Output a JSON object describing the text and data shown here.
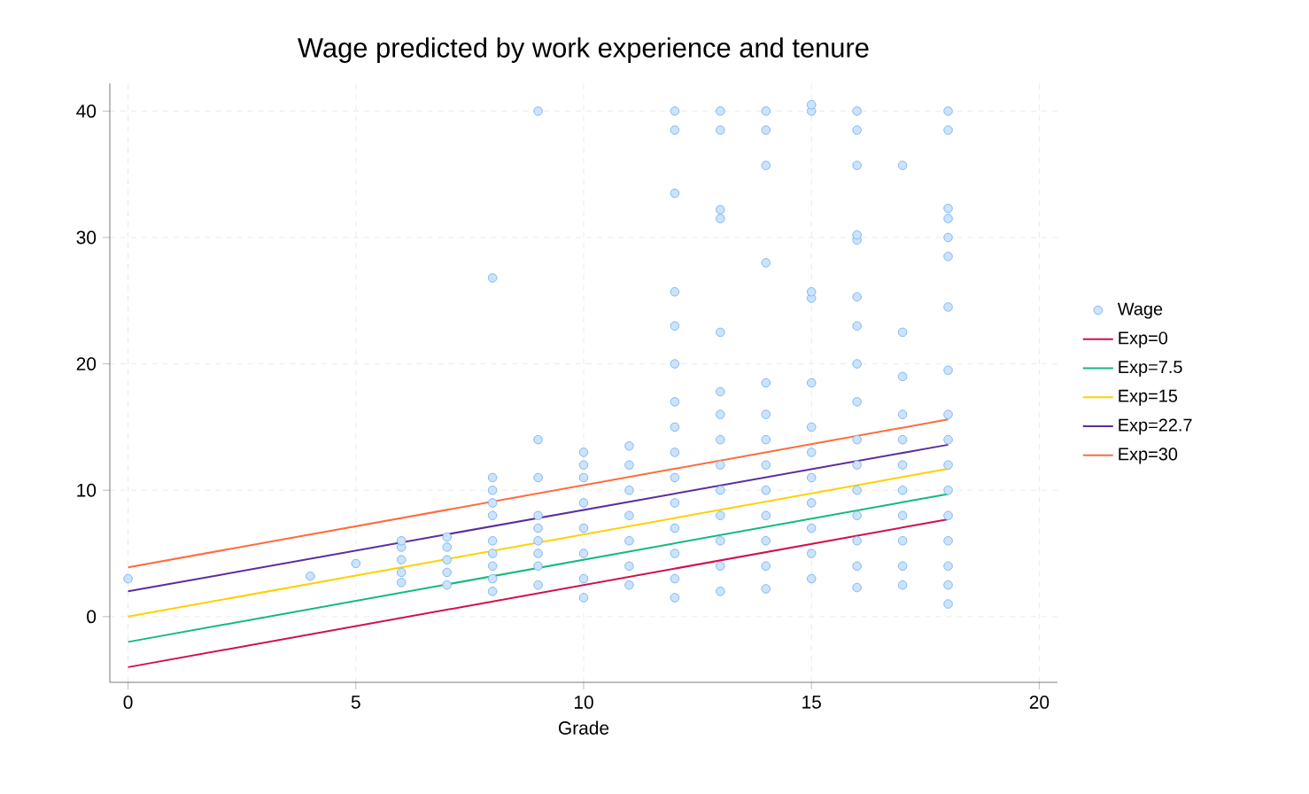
{
  "chart_data": {
    "type": "line",
    "title": "Wage predicted by work experience and tenure",
    "xlabel": "Grade",
    "xlim": [
      -0.4,
      20.4
    ],
    "ylim": [
      -5.2,
      42.2
    ],
    "xticks": [
      0,
      5,
      10,
      15,
      20
    ],
    "yticks": [
      0,
      10,
      20,
      30,
      40
    ],
    "grid": true,
    "legend": "right",
    "series": [
      {
        "name": "Wage",
        "type": "scatter",
        "marker": "circle",
        "color": "#7fb8f5",
        "x": [
          0,
          4,
          5,
          6,
          6,
          6,
          6,
          6,
          7,
          7,
          7,
          7,
          7,
          8,
          8,
          8,
          8,
          8,
          8,
          8,
          8,
          8,
          8,
          9,
          9,
          9,
          9,
          9,
          9,
          9,
          9,
          9,
          10,
          10,
          10,
          10,
          10,
          10,
          10,
          10,
          11,
          11,
          11,
          11,
          11,
          11,
          11,
          12,
          12,
          12,
          12,
          12,
          12,
          12,
          12,
          12,
          12,
          12,
          12,
          12,
          12,
          12,
          13,
          13,
          13,
          13,
          13,
          13,
          13,
          13,
          13,
          13,
          13,
          13,
          13,
          13,
          14,
          14,
          14,
          14,
          14,
          14,
          14,
          14,
          14,
          14,
          14,
          14,
          14,
          15,
          15,
          15,
          15,
          15,
          15,
          15,
          15,
          15,
          15,
          15,
          15,
          16,
          16,
          16,
          16,
          16,
          16,
          16,
          16,
          16,
          16,
          16,
          16,
          16,
          16,
          16,
          16,
          17,
          17,
          17,
          17,
          17,
          17,
          17,
          17,
          17,
          17,
          17,
          18,
          18,
          18,
          18,
          18,
          18,
          18,
          18,
          18,
          18,
          18,
          18,
          18,
          18,
          18,
          18,
          18
        ],
        "values": [
          3,
          3.2,
          4.2,
          2.7,
          3.5,
          4.5,
          5.5,
          6,
          2.5,
          3.5,
          4.5,
          5.5,
          6.3,
          2,
          3,
          4,
          5,
          6,
          8,
          9,
          10,
          11,
          26.8,
          2.5,
          4,
          5,
          6,
          7,
          8,
          11,
          14,
          40,
          1.5,
          3,
          5,
          7,
          9,
          11,
          12,
          13,
          2.5,
          4,
          6,
          8,
          10,
          12,
          13.5,
          1.5,
          3,
          5,
          7,
          9,
          11,
          13,
          15,
          17,
          20,
          23,
          25.7,
          33.5,
          38.5,
          40,
          2,
          4,
          6,
          8,
          10,
          12,
          14,
          16,
          17.8,
          22.5,
          31.5,
          32.2,
          38.5,
          40,
          2.2,
          4,
          6,
          8,
          10,
          12,
          14,
          16,
          18.5,
          28,
          35.7,
          38.5,
          40,
          3,
          5,
          7,
          9,
          11,
          13,
          15,
          18.5,
          25.2,
          25.7,
          40,
          40.5,
          2.3,
          4,
          6,
          8,
          10,
          12,
          14,
          17,
          20,
          23,
          25.3,
          29.8,
          30.2,
          35.7,
          38.5,
          40,
          2.5,
          4,
          6,
          8,
          10,
          12,
          14,
          16,
          19,
          22.5,
          35.7,
          1,
          2.5,
          4,
          6,
          8,
          10,
          12,
          14,
          16,
          19.5,
          24.5,
          28.5,
          30,
          31.5,
          32.3,
          38.5,
          40
        ]
      },
      {
        "name": "Exp=0",
        "marker": "none",
        "color": "#d0104c",
        "x": [
          0,
          18
        ],
        "values": [
          -4,
          7.7
        ]
      },
      {
        "name": "Exp=7.5",
        "marker": "none",
        "color": "#13b97f",
        "x": [
          0,
          18
        ],
        "values": [
          -2,
          9.7
        ]
      },
      {
        "name": "Exp=15",
        "marker": "none",
        "color": "#ffd000",
        "x": [
          0,
          18
        ],
        "values": [
          0,
          11.7
        ]
      },
      {
        "name": "Exp=22.7",
        "marker": "none",
        "color": "#5b2d9e",
        "x": [
          0,
          18
        ],
        "values": [
          2,
          13.6
        ]
      },
      {
        "name": "Exp=30",
        "marker": "none",
        "color": "#ff6b3d",
        "x": [
          0,
          18
        ],
        "values": [
          3.9,
          15.6
        ]
      }
    ]
  }
}
